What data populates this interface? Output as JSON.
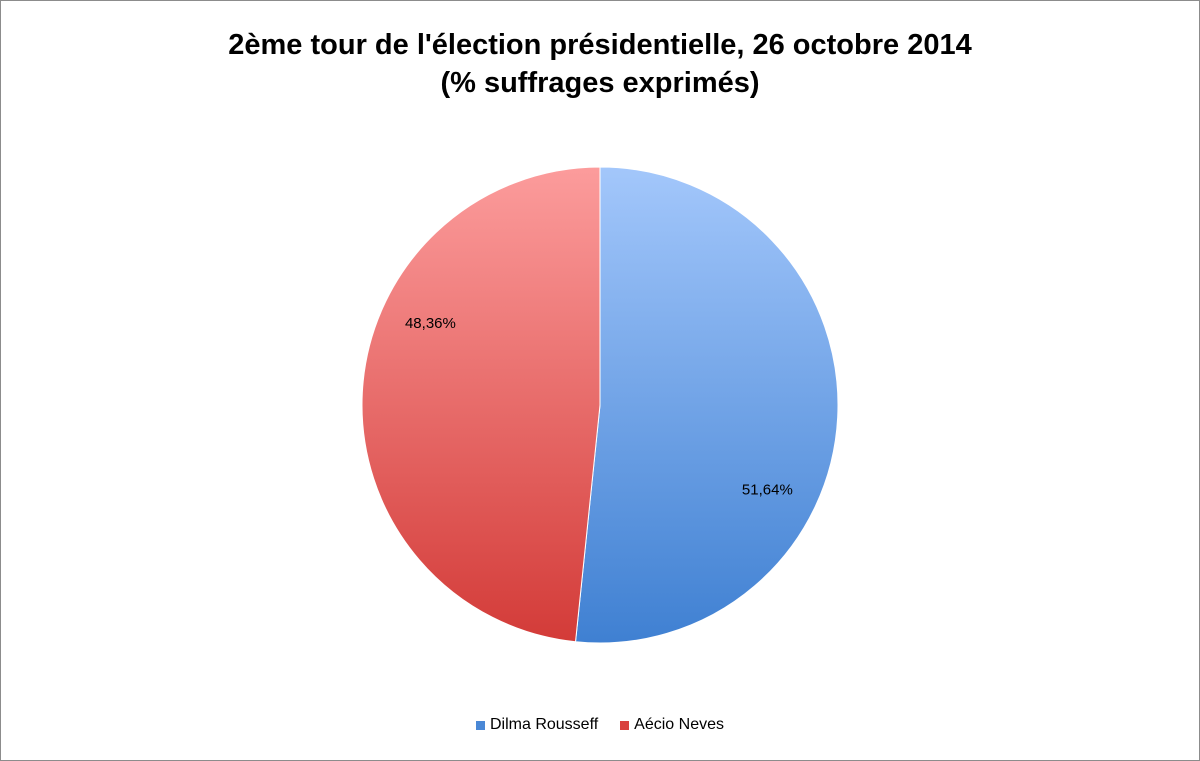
{
  "chart_data": {
    "type": "pie",
    "title_line1": "2ème tour de l'élection présidentielle, 26 octobre 2014",
    "title_line2": "(% suffrages exprimés)",
    "labels": [
      "Dilma Rousseff",
      "Aécio Neves"
    ],
    "values": [
      51.64,
      48.36
    ],
    "value_labels": [
      "51,64%",
      "48,36%"
    ],
    "colors": [
      "#4a88d6",
      "#d9423f"
    ],
    "legend_position": "bottom",
    "start_angle": "12 o'clock",
    "direction": "clockwise"
  }
}
